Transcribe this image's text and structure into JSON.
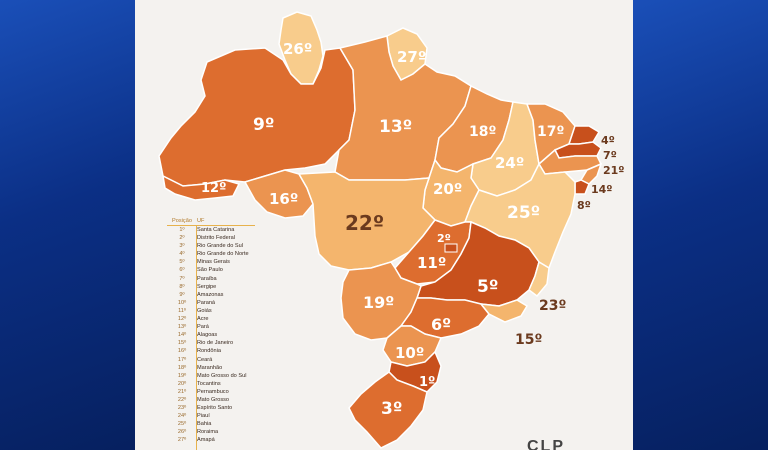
{
  "colors": {
    "darkest": "#c8501c",
    "dark": "#dd6d2f",
    "medium": "#eb9450",
    "light": "#f4b56d",
    "lightest": "#f8cc8c",
    "label_dark": "#6b3a1e"
  },
  "map": {
    "labels": {
      "rr": "26º",
      "ap": "27º",
      "am": "9º",
      "pa": "13º",
      "ac": "12º",
      "ro": "16º",
      "ma": "18º",
      "pi": "24º",
      "ce": "17º",
      "rn": "4º",
      "pb": "7º",
      "pe": "21º",
      "al": "14º",
      "se": "8º",
      "to": "20º",
      "ba": "25º",
      "mt": "22º",
      "df": "2º",
      "go": "11º",
      "mg": "5º",
      "ms": "19º",
      "sp": "6º",
      "es": "23º",
      "rj": "15º",
      "pr": "10º",
      "sc": "1º",
      "rs": "3º"
    }
  },
  "legend": {
    "header_pos": "Posição",
    "header_uf": "UF",
    "rows": [
      {
        "pos": "1º",
        "uf": "Santa Catarina"
      },
      {
        "pos": "2º",
        "uf": "Distrito Federal"
      },
      {
        "pos": "3º",
        "uf": "Rio Grande do Sul"
      },
      {
        "pos": "4º",
        "uf": "Rio Grande do Norte"
      },
      {
        "pos": "5º",
        "uf": "Minas Gerais"
      },
      {
        "pos": "6º",
        "uf": "São Paulo"
      },
      {
        "pos": "7º",
        "uf": "Paraíba"
      },
      {
        "pos": "8º",
        "uf": "Sergipe"
      },
      {
        "pos": "9º",
        "uf": "Amazonas"
      },
      {
        "pos": "10º",
        "uf": "Paraná"
      },
      {
        "pos": "11º",
        "uf": "Goiás"
      },
      {
        "pos": "12º",
        "uf": "Acre"
      },
      {
        "pos": "13º",
        "uf": "Pará"
      },
      {
        "pos": "14º",
        "uf": "Alagoas"
      },
      {
        "pos": "15º",
        "uf": "Rio de Janeiro"
      },
      {
        "pos": "16º",
        "uf": "Rondônia"
      },
      {
        "pos": "17º",
        "uf": "Ceará"
      },
      {
        "pos": "18º",
        "uf": "Maranhão"
      },
      {
        "pos": "19º",
        "uf": "Mato Grosso do Sul"
      },
      {
        "pos": "20º",
        "uf": "Tocantins"
      },
      {
        "pos": "21º",
        "uf": "Pernambuco"
      },
      {
        "pos": "22º",
        "uf": "Mato Grosso"
      },
      {
        "pos": "23º",
        "uf": "Espírito Santo"
      },
      {
        "pos": "24º",
        "uf": "Piauí"
      },
      {
        "pos": "25º",
        "uf": "Bahia"
      },
      {
        "pos": "26º",
        "uf": "Roraima"
      },
      {
        "pos": "27º",
        "uf": "Amapá"
      }
    ]
  },
  "logo": "CLP"
}
